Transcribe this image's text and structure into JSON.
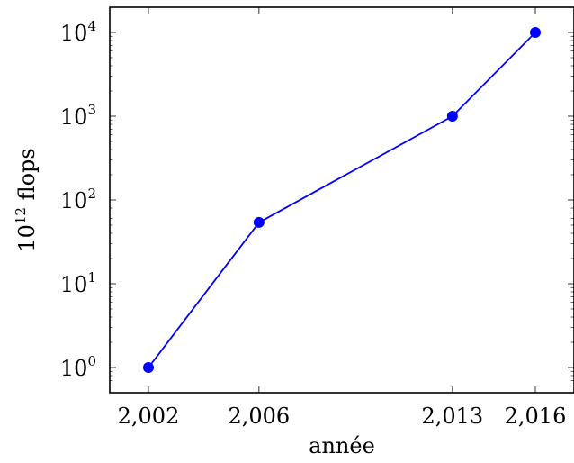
{
  "chart_data": {
    "type": "line",
    "xlabel": "année",
    "ylabel_base": "10",
    "ylabel_exp": "12",
    "ylabel_unit": " flops",
    "yscale": "log",
    "ylim": [
      0.5,
      20000
    ],
    "xlim": [
      2000.6,
      2017.4
    ],
    "x_ticks": [
      2002,
      2006,
      2013,
      2016
    ],
    "x_tick_labels": [
      "2,002",
      "2,006",
      "2,013",
      "2,016"
    ],
    "y_tick_exponents": [
      "0",
      "1",
      "2",
      "3",
      "4"
    ],
    "y_tick_base": "10",
    "series": [
      {
        "color": "#0000ff",
        "x": [
          2002,
          2006,
          2013,
          2016
        ],
        "y": [
          1,
          54,
          1000,
          10000
        ]
      }
    ],
    "grid": false
  }
}
